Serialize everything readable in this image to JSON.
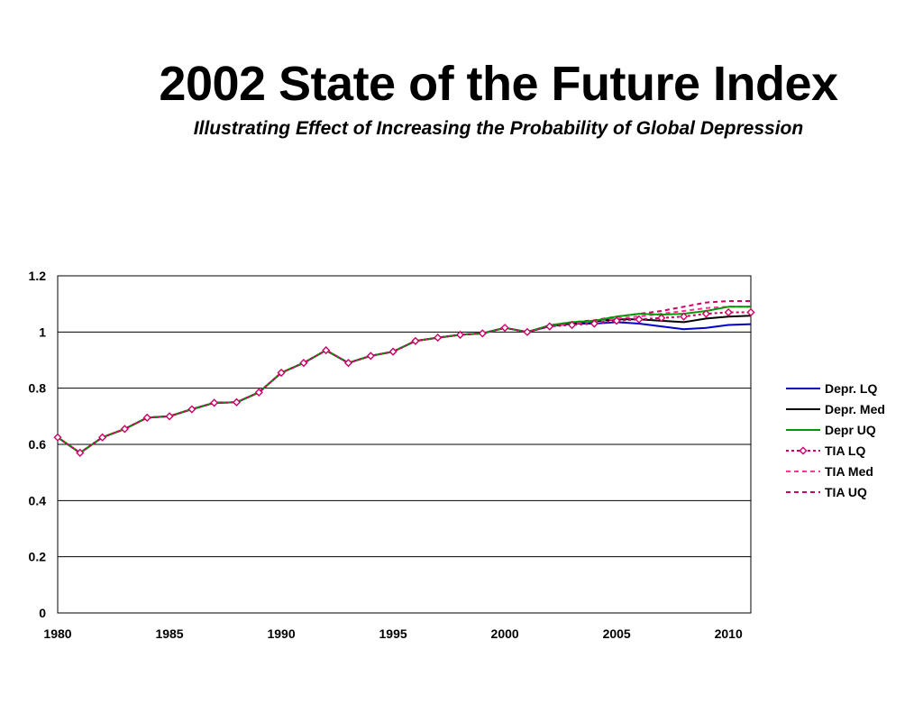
{
  "page": {
    "title": "2002 State of the Future Index",
    "subtitle": "Illustrating Effect of Increasing the Probability of Global Depression"
  },
  "chart_data": {
    "type": "line",
    "title": "2002 State of the Future Index",
    "subtitle": "Illustrating Effect of Increasing the Probability of Global Depression",
    "xlabel": "",
    "ylabel": "",
    "xlim": [
      1980,
      2011
    ],
    "ylim": [
      0,
      1.2
    ],
    "x_ticks": [
      1980,
      1985,
      1990,
      1995,
      2000,
      2005,
      2010
    ],
    "y_ticks": [
      0,
      0.2,
      0.4,
      0.6,
      0.8,
      1,
      1.2
    ],
    "grid": "horizontal",
    "legend_position": "right",
    "x": [
      1980,
      1981,
      1982,
      1983,
      1984,
      1985,
      1986,
      1987,
      1988,
      1989,
      1990,
      1991,
      1992,
      1993,
      1994,
      1995,
      1996,
      1997,
      1998,
      1999,
      2000,
      2001,
      2002,
      2003,
      2004,
      2005,
      2006,
      2007,
      2008,
      2009,
      2010,
      2011
    ],
    "series": [
      {
        "name": "Depr. LQ",
        "color": "#0000cc",
        "dash": "solid",
        "marker": "none",
        "values": [
          0.625,
          0.57,
          0.625,
          0.655,
          0.695,
          0.7,
          0.725,
          0.748,
          0.75,
          0.785,
          0.855,
          0.89,
          0.935,
          0.89,
          0.915,
          0.93,
          0.968,
          0.98,
          0.99,
          0.995,
          1.015,
          1.0,
          1.02,
          1.03,
          1.03,
          1.035,
          1.03,
          1.02,
          1.01,
          1.015,
          1.025,
          1.028
        ]
      },
      {
        "name": "Depr. Med",
        "color": "#000000",
        "dash": "solid",
        "marker": "none",
        "values": [
          0.625,
          0.57,
          0.625,
          0.655,
          0.695,
          0.7,
          0.725,
          0.748,
          0.75,
          0.785,
          0.855,
          0.89,
          0.935,
          0.89,
          0.915,
          0.93,
          0.968,
          0.98,
          0.99,
          0.995,
          1.015,
          1.0,
          1.022,
          1.033,
          1.038,
          1.045,
          1.045,
          1.04,
          1.035,
          1.048,
          1.055,
          1.058
        ]
      },
      {
        "name": "Depr UQ",
        "color": "#009900",
        "dash": "solid",
        "marker": "none",
        "values": [
          0.625,
          0.57,
          0.625,
          0.655,
          0.695,
          0.7,
          0.725,
          0.748,
          0.75,
          0.785,
          0.855,
          0.89,
          0.935,
          0.89,
          0.915,
          0.93,
          0.968,
          0.98,
          0.99,
          0.995,
          1.015,
          1.0,
          1.024,
          1.035,
          1.04,
          1.055,
          1.065,
          1.062,
          1.065,
          1.075,
          1.09,
          1.09
        ]
      },
      {
        "name": "TIA LQ",
        "color": "#cc0066",
        "dash": "dotted",
        "marker": "diamond",
        "values": [
          0.625,
          0.57,
          0.625,
          0.655,
          0.695,
          0.7,
          0.725,
          0.748,
          0.75,
          0.785,
          0.855,
          0.89,
          0.935,
          0.89,
          0.915,
          0.93,
          0.968,
          0.98,
          0.99,
          0.995,
          1.015,
          1.0,
          1.02,
          1.025,
          1.03,
          1.04,
          1.045,
          1.05,
          1.055,
          1.065,
          1.07,
          1.07
        ]
      },
      {
        "name": "TIA Med",
        "color": "#ff3399",
        "dash": "dashed",
        "marker": "none",
        "values": [
          0.625,
          0.57,
          0.625,
          0.655,
          0.695,
          0.7,
          0.725,
          0.748,
          0.75,
          0.785,
          0.855,
          0.89,
          0.935,
          0.89,
          0.915,
          0.93,
          0.968,
          0.98,
          0.99,
          0.995,
          1.015,
          1.0,
          1.022,
          1.03,
          1.038,
          1.048,
          1.055,
          1.065,
          1.075,
          1.085,
          1.09,
          1.09
        ]
      },
      {
        "name": "TIA UQ",
        "color": "#cc0066",
        "dash": "dashed",
        "marker": "none",
        "values": [
          0.625,
          0.57,
          0.625,
          0.655,
          0.695,
          0.7,
          0.725,
          0.748,
          0.75,
          0.785,
          0.855,
          0.89,
          0.935,
          0.89,
          0.915,
          0.93,
          0.968,
          0.98,
          0.99,
          0.995,
          1.015,
          1.0,
          1.024,
          1.035,
          1.042,
          1.055,
          1.065,
          1.075,
          1.09,
          1.105,
          1.11,
          1.11
        ]
      }
    ]
  }
}
